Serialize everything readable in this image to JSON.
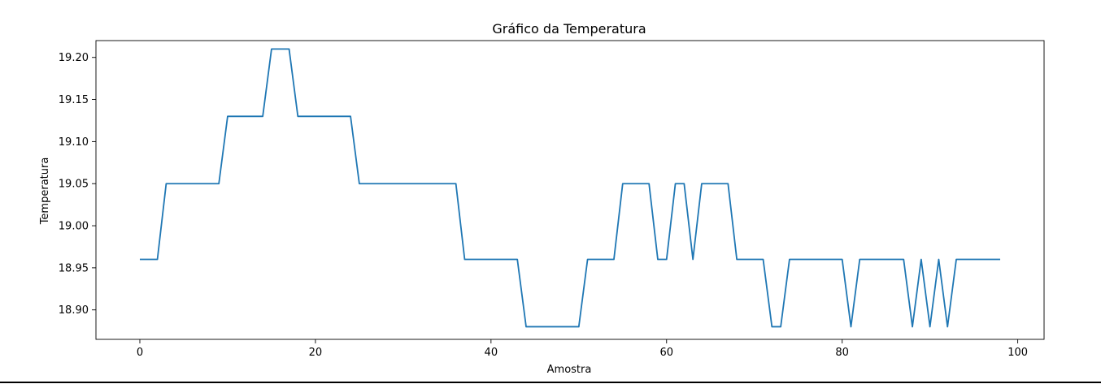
{
  "chart_data": {
    "type": "line",
    "title": "Gráfico da Temperatura",
    "xlabel": "Amostra",
    "ylabel": "Temperatura",
    "xlim": [
      -5,
      103
    ],
    "ylim": [
      18.865,
      19.22
    ],
    "xticks": [
      0,
      20,
      40,
      60,
      80,
      100
    ],
    "yticks": [
      18.9,
      18.95,
      19.0,
      19.05,
      19.1,
      19.15,
      19.2
    ],
    "ytick_labels": [
      "18.90",
      "18.95",
      "19.00",
      "19.05",
      "19.10",
      "19.15",
      "19.20"
    ],
    "grid": false,
    "line_color": "#1f77b4",
    "series": [
      {
        "x": [
          0,
          1,
          2,
          3,
          4,
          5,
          6,
          7,
          8,
          9,
          10,
          11,
          12,
          13,
          14,
          15,
          16,
          17,
          18,
          19,
          20,
          21,
          22,
          23,
          24,
          25,
          26,
          27,
          28,
          29,
          30,
          31,
          32,
          33,
          34,
          35,
          36,
          37,
          38,
          39,
          40,
          41,
          42,
          43,
          44,
          45,
          46,
          47,
          48,
          49,
          50,
          51,
          52,
          53,
          54,
          55,
          56,
          57,
          58,
          59,
          60,
          61,
          62,
          63,
          64,
          65,
          66,
          67,
          68,
          69,
          70,
          71,
          72,
          73,
          74,
          75,
          76,
          77,
          78,
          79,
          80,
          81,
          82,
          83,
          84,
          85,
          86,
          87,
          88,
          89,
          90,
          91,
          92,
          93,
          94,
          95,
          96,
          97,
          98
        ],
        "y": [
          18.96,
          18.96,
          18.96,
          19.05,
          19.05,
          19.05,
          19.05,
          19.05,
          19.05,
          19.05,
          19.13,
          19.13,
          19.13,
          19.13,
          19.13,
          19.21,
          19.21,
          19.21,
          19.13,
          19.13,
          19.13,
          19.13,
          19.13,
          19.13,
          19.13,
          19.05,
          19.05,
          19.05,
          19.05,
          19.05,
          19.05,
          19.05,
          19.05,
          19.05,
          19.05,
          19.05,
          19.05,
          18.96,
          18.96,
          18.96,
          18.96,
          18.96,
          18.96,
          18.96,
          18.88,
          18.88,
          18.88,
          18.88,
          18.88,
          18.88,
          18.88,
          18.96,
          18.96,
          18.96,
          18.96,
          19.05,
          19.05,
          19.05,
          19.05,
          18.96,
          18.96,
          19.05,
          19.05,
          18.96,
          19.05,
          19.05,
          19.05,
          19.05,
          18.96,
          18.96,
          18.96,
          18.96,
          18.88,
          18.88,
          18.96,
          18.96,
          18.96,
          18.96,
          18.96,
          18.96,
          18.96,
          18.88,
          18.96,
          18.96,
          18.96,
          18.96,
          18.96,
          18.96,
          18.88,
          18.96,
          18.88,
          18.96,
          18.88,
          18.96,
          18.96,
          18.96,
          18.96,
          18.96,
          18.96
        ]
      }
    ]
  }
}
